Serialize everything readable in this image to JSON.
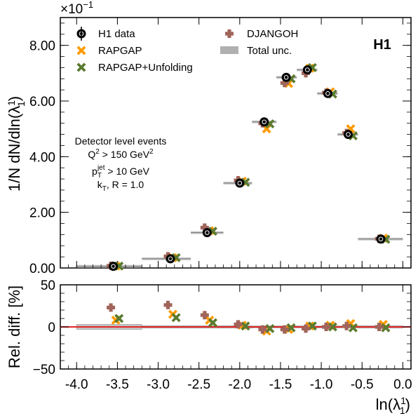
{
  "chart_data": {
    "type": "scatter",
    "brand_label": "H1",
    "x_var": "ln(λ",
    "x_var_sup": "1",
    "x_var_sub": "1",
    "x_var_close": ")",
    "xlim": [
      -4.2,
      0.1
    ],
    "x_ticks": [
      -4.0,
      -3.5,
      -3.0,
      -2.5,
      -2.0,
      -1.5,
      -1.0,
      -0.5,
      0.0
    ],
    "x_tick_labels": [
      "-4.0",
      "-3.5",
      "-3.0",
      "-2.5",
      "-2.0",
      "-1.5",
      "-1.0",
      "-0.5",
      "0.0"
    ],
    "bins": [
      {
        "lo": -4.0,
        "hi": -3.2
      },
      {
        "lo": -3.2,
        "hi": -2.6
      },
      {
        "lo": -2.6,
        "hi": -2.2
      },
      {
        "lo": -2.2,
        "hi": -1.85
      },
      {
        "lo": -1.85,
        "hi": -1.55
      },
      {
        "lo": -1.55,
        "hi": -1.3
      },
      {
        "lo": -1.3,
        "hi": -1.05
      },
      {
        "lo": -1.05,
        "hi": -0.8
      },
      {
        "lo": -0.8,
        "hi": -0.55
      },
      {
        "lo": -0.55,
        "hi": 0.0
      }
    ],
    "top_panel": {
      "ylabel": "1/N dN/dln(λ",
      "ylabel_sup": "1",
      "ylabel_sub": "1",
      "ylabel_close": ")",
      "exponent_label": "×10",
      "exponent_power": "−1",
      "ylim": [
        0.0,
        9.0
      ],
      "y_ticks": [
        0.0,
        2.0,
        4.0,
        6.0,
        8.0
      ],
      "y_tick_labels": [
        "0.00",
        "2.00",
        "4.00",
        "6.00",
        "8.00"
      ],
      "annotations": [
        {
          "text": "Detector level events"
        },
        {
          "text": "Q",
          "sup": "2",
          "rest": " > 150 GeV",
          "sup2": "2"
        },
        {
          "text": "p",
          "sub": "T",
          "sup": "jet",
          "rest": " > 10 GeV"
        },
        {
          "text": "k",
          "sub": "T",
          "rest": ", R = 1.0"
        }
      ],
      "series": [
        {
          "name": "H1 data",
          "key": "data",
          "x": [
            -3.55,
            -2.85,
            -2.4,
            -2.0,
            -1.7,
            -1.43,
            -1.17,
            -0.92,
            -0.67,
            -0.27
          ],
          "values": [
            0.06,
            0.33,
            1.27,
            3.05,
            5.25,
            6.85,
            7.12,
            6.27,
            4.8,
            1.04
          ]
        },
        {
          "name": "RAPGAP",
          "key": "rapgap",
          "x": [
            -3.52,
            -2.82,
            -2.37,
            -1.97,
            -1.67,
            -1.4,
            -1.14,
            -0.89,
            -0.64,
            -0.24
          ],
          "values": [
            0.07,
            0.37,
            1.34,
            3.12,
            5.0,
            6.63,
            7.18,
            6.33,
            5.0,
            1.07
          ]
        },
        {
          "name": "RAPGAP+Unfolding",
          "key": "unfold",
          "x": [
            -3.48,
            -2.78,
            -2.33,
            -1.93,
            -1.63,
            -1.37,
            -1.11,
            -0.86,
            -0.61,
            -0.21
          ],
          "values": [
            0.07,
            0.37,
            1.32,
            3.08,
            5.18,
            6.8,
            7.2,
            6.25,
            4.75,
            1.03
          ]
        },
        {
          "name": "DJANGOH",
          "key": "djangoh",
          "x": [
            -3.58,
            -2.88,
            -2.43,
            -2.02,
            -1.72,
            -1.45,
            -1.19,
            -0.94,
            -0.69,
            -0.29
          ],
          "values": [
            0.08,
            0.42,
            1.45,
            3.15,
            5.2,
            6.65,
            7.0,
            6.3,
            4.85,
            1.05
          ]
        }
      ]
    },
    "bottom_panel": {
      "ylabel": "Rel. diff. [%]",
      "ylim": [
        -50,
        50
      ],
      "y_ticks": [
        -50,
        0,
        50
      ],
      "y_tick_labels": [
        "−50",
        "0",
        "50"
      ],
      "reference_line": 0,
      "uncertainty": [
        3.0,
        1.5,
        1.5,
        1.5,
        1.2,
        1.2,
        1.2,
        1.2,
        1.2,
        1.5
      ],
      "series": [
        {
          "name": "RAPGAP",
          "key": "rapgap",
          "x": [
            -3.52,
            -2.82,
            -2.37,
            -1.97,
            -1.67,
            -1.4,
            -1.14,
            -0.89,
            -0.64,
            -0.24
          ],
          "values": [
            8,
            15,
            8,
            2,
            -5,
            -3,
            1,
            2,
            4,
            3
          ]
        },
        {
          "name": "RAPGAP+Unfolding",
          "key": "unfold",
          "x": [
            -3.48,
            -2.78,
            -2.33,
            -1.93,
            -1.63,
            -1.37,
            -1.11,
            -0.86,
            -0.61,
            -0.21
          ],
          "values": [
            10,
            11,
            5,
            1,
            -2,
            -1,
            1,
            0,
            -1,
            -1
          ]
        },
        {
          "name": "DJANGOH",
          "key": "djangoh",
          "x": [
            -3.58,
            -2.88,
            -2.43,
            -2.02,
            -1.72,
            -1.45,
            -1.19,
            -0.94,
            -0.69,
            -0.29
          ],
          "values": [
            23,
            26,
            14,
            3,
            -3,
            -3,
            -2,
            0,
            1,
            0
          ]
        }
      ]
    },
    "legend": {
      "placement": "top",
      "items": [
        {
          "label": "H1 data",
          "key": "data"
        },
        {
          "label": "RAPGAP",
          "key": "rapgap"
        },
        {
          "label": "RAPGAP+Unfolding",
          "key": "unfold"
        },
        {
          "label": "DJANGOH",
          "key": "djangoh"
        },
        {
          "label": "Total unc.",
          "key": "unc"
        }
      ]
    },
    "colors": {
      "data": "#000000",
      "rapgap": "#ff9a00",
      "unfold": "#5a7a2e",
      "djangoh": "#a0645a",
      "unc": "#b0b0b0",
      "reference_line": "#e32626"
    }
  }
}
